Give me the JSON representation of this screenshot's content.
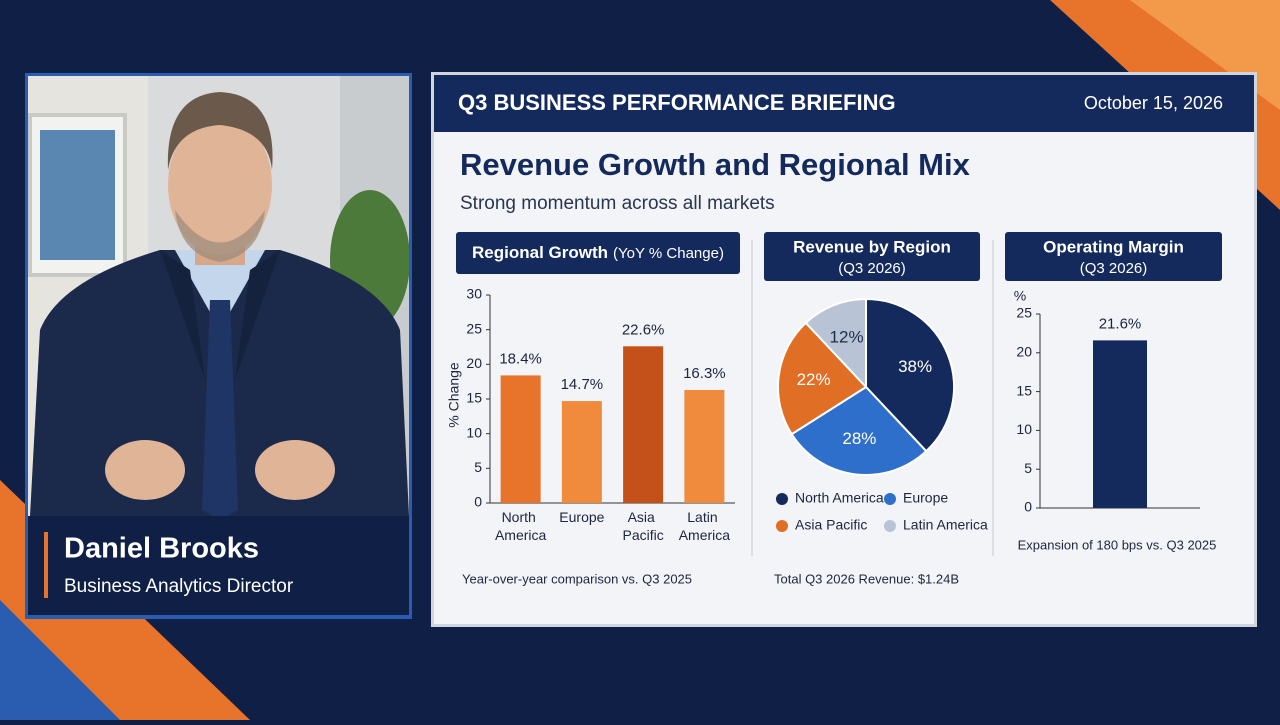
{
  "header": {
    "title": "Q3 BUSINESS PERFORMANCE BRIEFING",
    "date": "October 15, 2026"
  },
  "slide": {
    "title": "Revenue Growth and Regional Mix",
    "subtitle": "Strong momentum across all markets"
  },
  "presenter": {
    "name": "Daniel Brooks",
    "role": "Business Analytics Director"
  },
  "chart_data": [
    {
      "type": "bar",
      "title": "Regional Growth",
      "subtitle": "(YoY % Change)",
      "y_label": "% Change",
      "categories": [
        "North America",
        "Europe",
        "Asia Pacific",
        "Latin America"
      ],
      "values": [
        18.4,
        14.7,
        22.6,
        16.3
      ],
      "value_labels": [
        "18.4%",
        "14.7%",
        "22.6%",
        "16.3%"
      ],
      "colors": [
        "#e8732a",
        "#f08a3c",
        "#c4501a",
        "#f08a3c"
      ],
      "ylim": [
        0,
        30
      ],
      "yticks": [
        0,
        5,
        10,
        15,
        20,
        25,
        30
      ],
      "note": "Year-over-year comparison vs. Q3 2025"
    },
    {
      "type": "pie",
      "title": "Revenue by Region",
      "subtitle": "(Q3 2026)",
      "categories": [
        "North America",
        "Europe",
        "Asia Pacific",
        "Latin America"
      ],
      "values": [
        38,
        28,
        22,
        12
      ],
      "value_labels": [
        "38%",
        "28%",
        "22%",
        "12%"
      ],
      "colors": [
        "#142a5c",
        "#2f6fcc",
        "#e06e24",
        "#b8c4d6"
      ],
      "note": "Total Q3 2026 Revenue: $1.24B"
    },
    {
      "type": "bar",
      "title": "Operating Margin",
      "subtitle": "(Q3 2026)",
      "y_label": "%",
      "categories": [
        null
      ],
      "values": [
        21.6
      ],
      "value_labels": [
        "21.6%"
      ],
      "colors": [
        "#142a5c"
      ],
      "ylim": [
        0,
        25
      ],
      "yticks": [
        0,
        5,
        10,
        15,
        20,
        25
      ],
      "note": "Expansion of 180 bps vs. Q3 2025"
    }
  ]
}
